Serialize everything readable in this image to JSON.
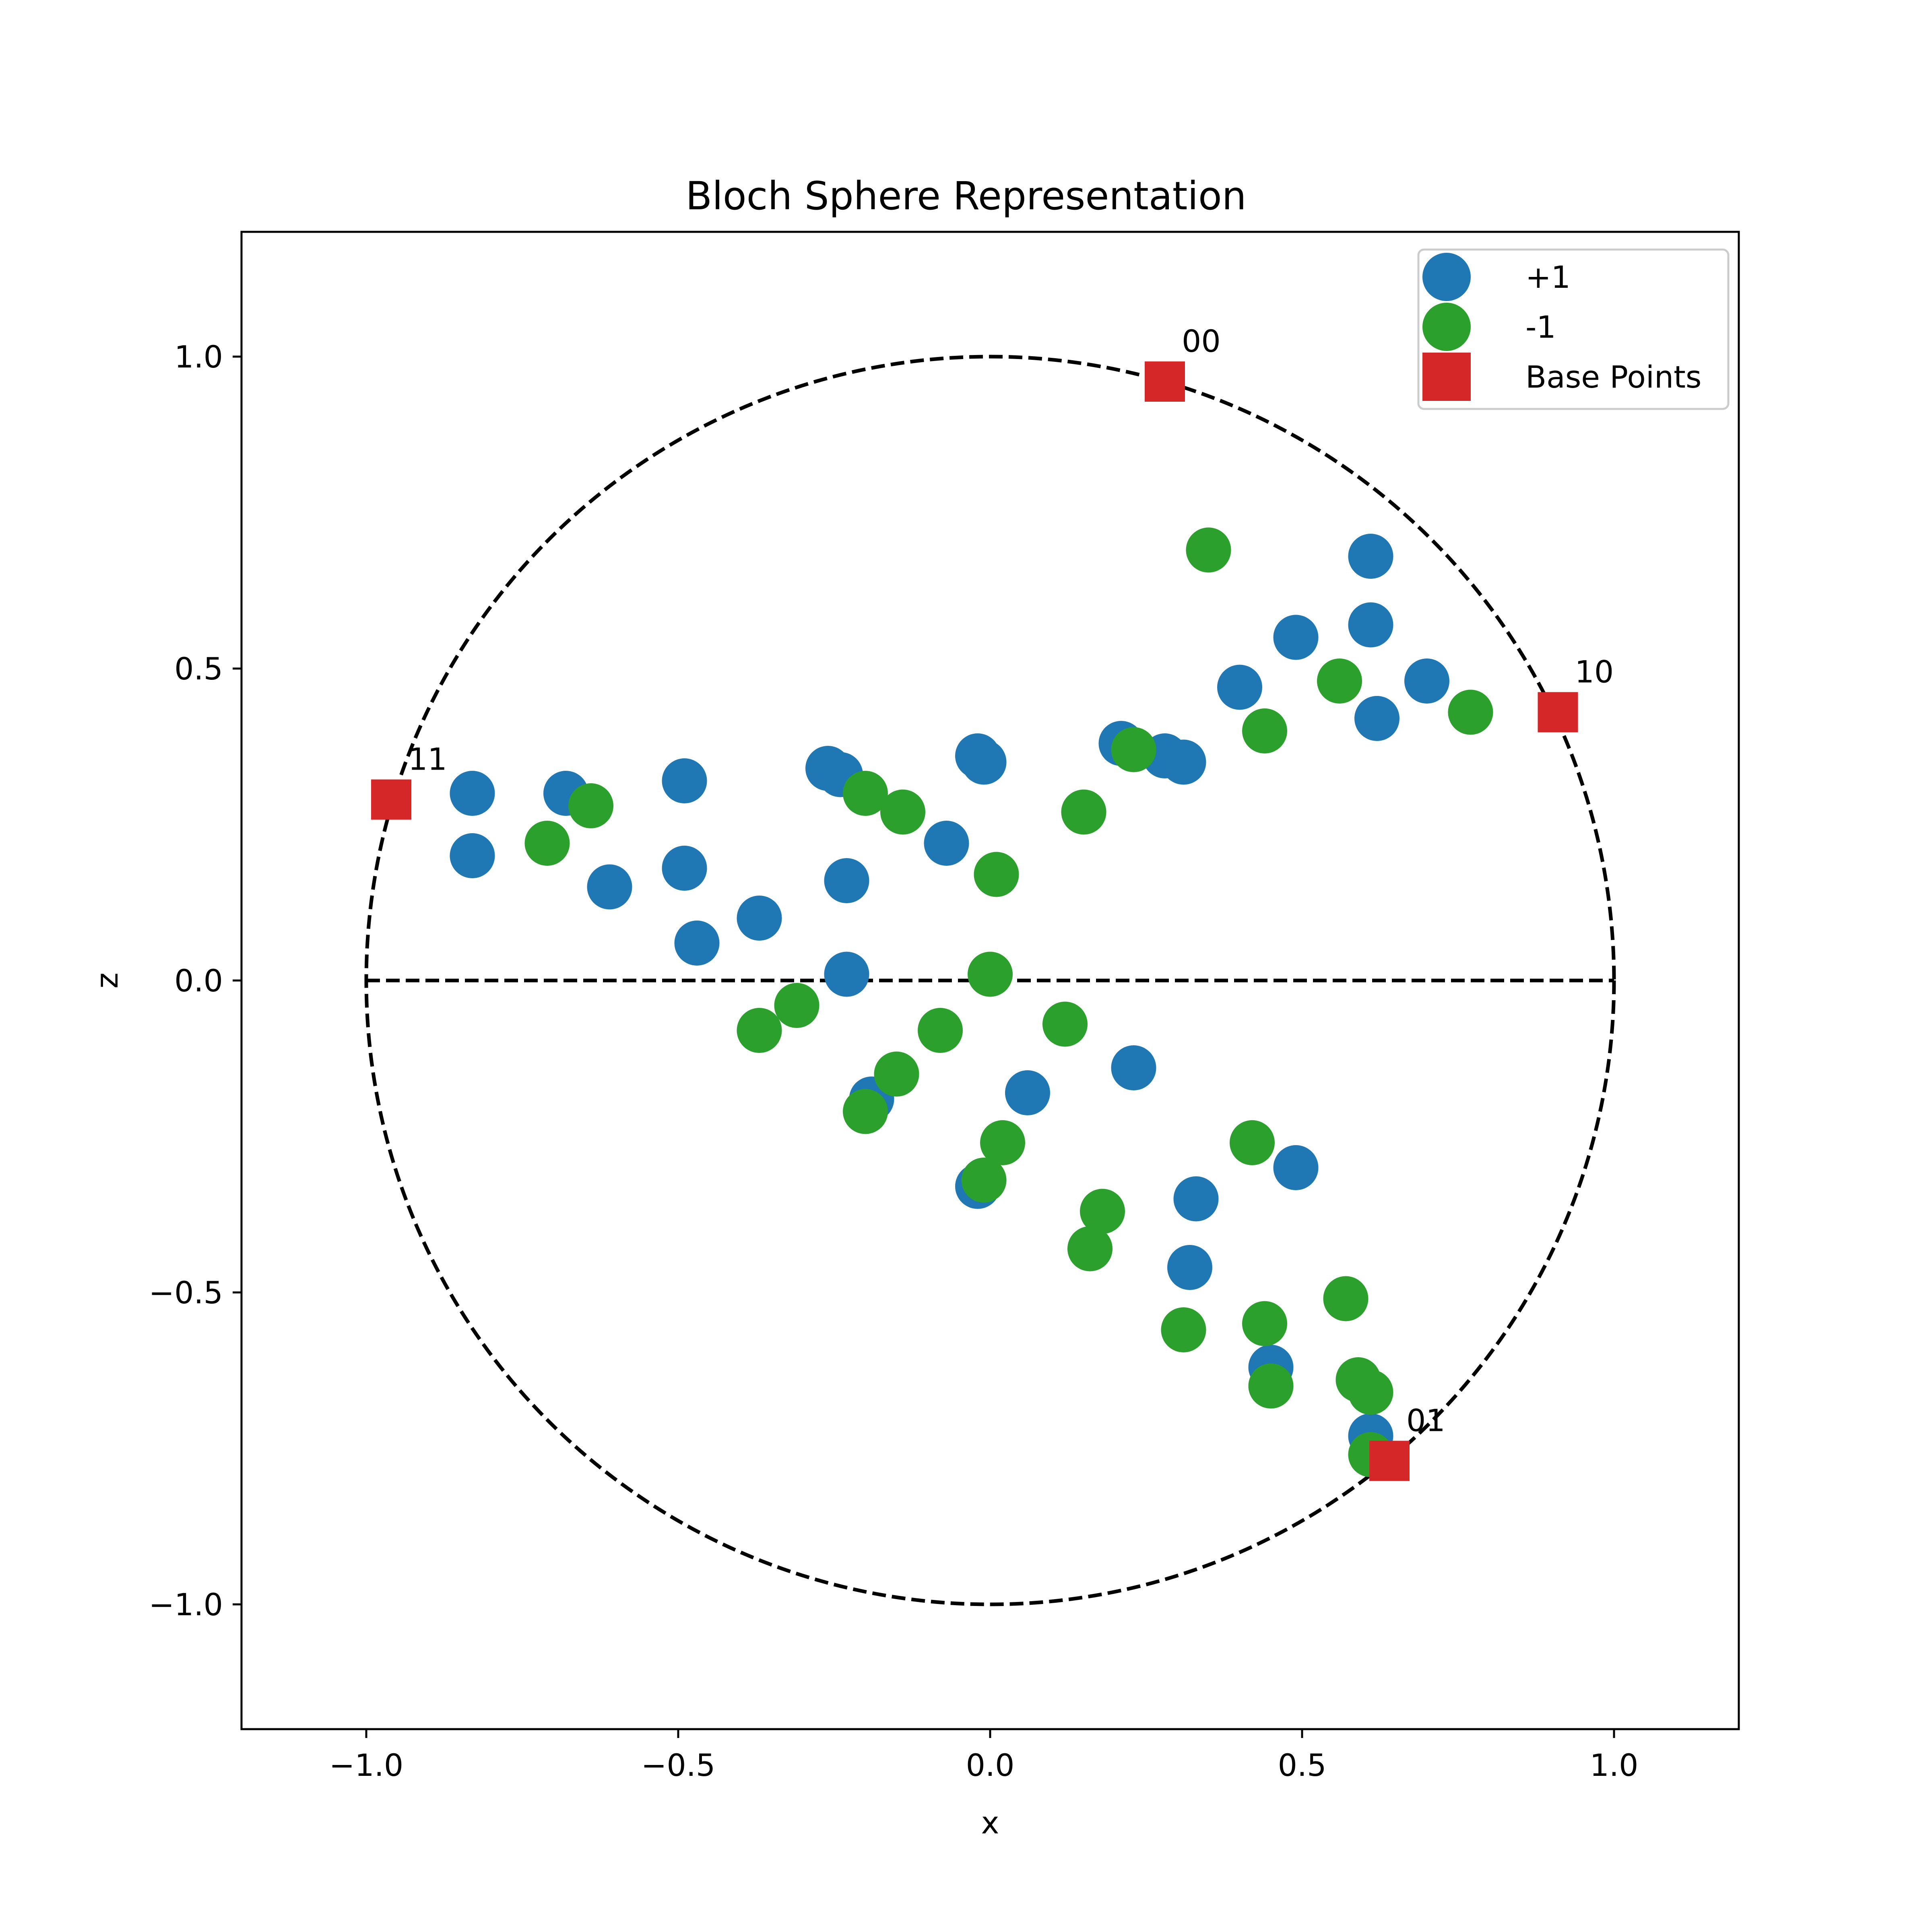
{
  "chart_data": {
    "type": "scatter",
    "title": "Bloch Sphere Representation",
    "xlabel": "x",
    "ylabel": "z",
    "xlim": [
      -1.2,
      1.2
    ],
    "ylim": [
      -1.2,
      1.2
    ],
    "xticks": [
      {
        "value": -1.0,
        "label": "−1.0"
      },
      {
        "value": -0.5,
        "label": "−0.5"
      },
      {
        "value": 0.0,
        "label": "0.0"
      },
      {
        "value": 0.5,
        "label": "0.5"
      },
      {
        "value": 1.0,
        "label": "1.0"
      }
    ],
    "yticks": [
      {
        "value": -1.0,
        "label": "−1.0"
      },
      {
        "value": -0.5,
        "label": "−0.5"
      },
      {
        "value": 0.0,
        "label": "0.0"
      },
      {
        "value": 0.5,
        "label": "0.5"
      },
      {
        "value": 1.0,
        "label": "1.0"
      }
    ],
    "grid": false,
    "legend_position": "top-right",
    "reference_lines": {
      "unit_circle": {
        "radius": 1.0,
        "style": "dashed",
        "color": "#000000"
      },
      "equator": {
        "y": 0.0,
        "x_range": [
          -1.0,
          1.0
        ],
        "style": "dashed",
        "color": "#000000"
      }
    },
    "series": [
      {
        "name": "+1",
        "marker": "circle",
        "color": "#1f77b4",
        "points": [
          [
            0.61,
            0.68
          ],
          [
            0.61,
            0.57
          ],
          [
            0.49,
            0.55
          ],
          [
            0.4,
            0.47
          ],
          [
            0.7,
            0.48
          ],
          [
            0.62,
            0.42
          ],
          [
            0.21,
            0.38
          ],
          [
            0.28,
            0.36
          ],
          [
            0.31,
            0.35
          ],
          [
            -0.02,
            0.36
          ],
          [
            -0.01,
            0.35
          ],
          [
            -0.26,
            0.34
          ],
          [
            -0.24,
            0.33
          ],
          [
            -0.49,
            0.32
          ],
          [
            -0.68,
            0.3
          ],
          [
            -0.83,
            0.3
          ],
          [
            -0.83,
            0.2
          ],
          [
            -0.49,
            0.18
          ],
          [
            -0.61,
            0.15
          ],
          [
            -0.07,
            0.22
          ],
          [
            -0.23,
            0.16
          ],
          [
            -0.37,
            0.1
          ],
          [
            -0.47,
            0.06
          ],
          [
            -0.23,
            0.01
          ],
          [
            0.23,
            -0.14
          ],
          [
            0.06,
            -0.18
          ],
          [
            -0.19,
            -0.19
          ],
          [
            -0.02,
            -0.33
          ],
          [
            0.49,
            -0.3
          ],
          [
            0.33,
            -0.35
          ],
          [
            0.32,
            -0.46
          ],
          [
            0.45,
            -0.62
          ],
          [
            0.61,
            -0.73
          ]
        ]
      },
      {
        "name": "-1",
        "marker": "circle",
        "color": "#2ca02c",
        "points": [
          [
            0.35,
            0.69
          ],
          [
            0.56,
            0.48
          ],
          [
            0.77,
            0.43
          ],
          [
            0.44,
            0.4
          ],
          [
            0.23,
            0.37
          ],
          [
            0.15,
            0.27
          ],
          [
            0.01,
            0.17
          ],
          [
            -0.2,
            0.3
          ],
          [
            -0.14,
            0.27
          ],
          [
            -0.64,
            0.28
          ],
          [
            -0.71,
            0.22
          ],
          [
            0.0,
            0.01
          ],
          [
            -0.31,
            -0.04
          ],
          [
            -0.37,
            -0.08
          ],
          [
            -0.08,
            -0.08
          ],
          [
            0.12,
            -0.07
          ],
          [
            -0.15,
            -0.15
          ],
          [
            -0.2,
            -0.21
          ],
          [
            0.02,
            -0.26
          ],
          [
            -0.01,
            -0.32
          ],
          [
            0.42,
            -0.26
          ],
          [
            0.18,
            -0.37
          ],
          [
            0.16,
            -0.43
          ],
          [
            0.57,
            -0.51
          ],
          [
            0.44,
            -0.55
          ],
          [
            0.31,
            -0.56
          ],
          [
            0.59,
            -0.64
          ],
          [
            0.61,
            -0.66
          ],
          [
            0.45,
            -0.65
          ],
          [
            0.61,
            -0.76
          ]
        ]
      },
      {
        "name": "Base Points",
        "marker": "square",
        "color": "#d62728",
        "points": [
          [
            0.28,
            0.96
          ],
          [
            0.91,
            0.43
          ],
          [
            -0.96,
            0.29
          ],
          [
            0.64,
            -0.77
          ]
        ],
        "point_labels": [
          "00",
          "10",
          "11",
          "01"
        ]
      }
    ]
  }
}
